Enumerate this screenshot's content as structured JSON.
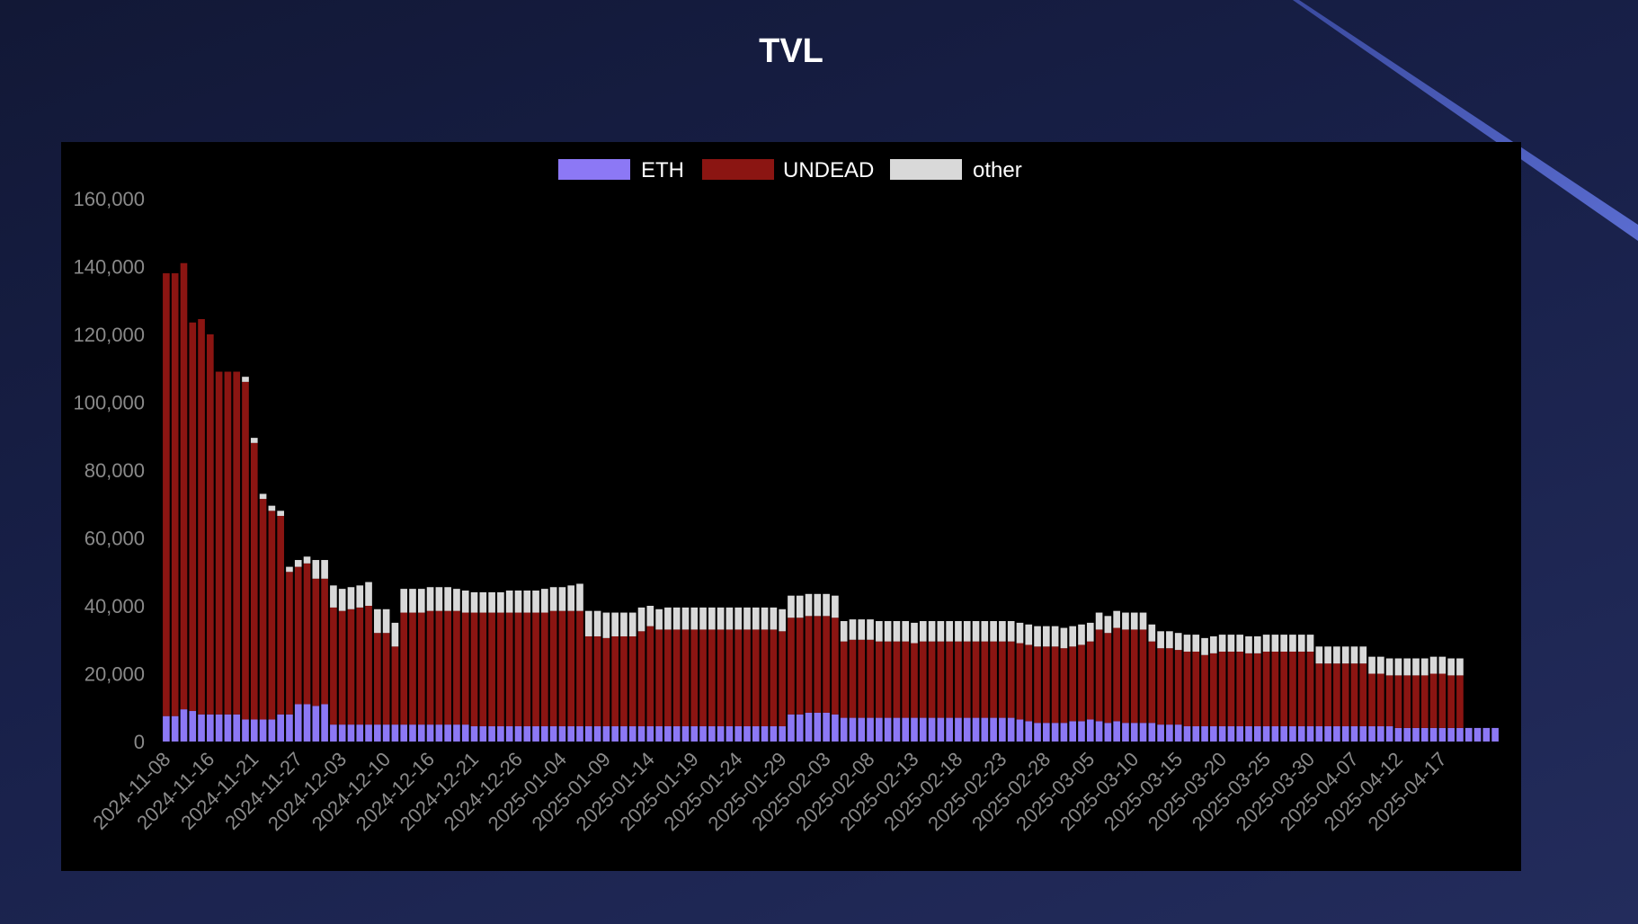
{
  "chart_data": {
    "type": "bar",
    "stacked": true,
    "title": "TVL",
    "xlabel": "",
    "ylabel": "",
    "ylim": [
      0,
      160000
    ],
    "yticks": [
      0,
      20000,
      40000,
      60000,
      80000,
      100000,
      120000,
      140000,
      160000
    ],
    "ytick_labels": [
      "0",
      "20,000",
      "40,000",
      "60,000",
      "80,000",
      "100,000",
      "120,000",
      "140,000",
      "160,000"
    ],
    "xtick_labels": [
      "2024-11-08",
      "2024-11-16",
      "2024-11-21",
      "2024-11-27",
      "2024-12-03",
      "2024-12-10",
      "2024-12-16",
      "2024-12-21",
      "2024-12-26",
      "2025-01-04",
      "2025-01-09",
      "2025-01-14",
      "2025-01-19",
      "2025-01-24",
      "2025-01-29",
      "2025-02-03",
      "2025-02-08",
      "2025-02-13",
      "2025-02-18",
      "2025-02-23",
      "2025-02-28",
      "2025-03-05",
      "2025-03-10",
      "2025-03-15",
      "2025-03-20",
      "2025-03-25",
      "2025-03-30",
      "2025-04-07",
      "2025-04-12",
      "2025-04-17"
    ],
    "xtick_every": 5,
    "grid": false,
    "legend_position": "top-center",
    "series": [
      {
        "name": "ETH",
        "color": "#8c78f5",
        "values": [
          7500,
          7500,
          9500,
          9000,
          8000,
          8000,
          8000,
          8000,
          8000,
          6500,
          6500,
          6500,
          6500,
          8000,
          8000,
          11000,
          11000,
          10500,
          11000,
          5000,
          5000,
          5000,
          5000,
          5000,
          5000,
          5000,
          5000,
          5000,
          5000,
          5000,
          5000,
          5000,
          5000,
          5000,
          5000,
          4500,
          4500,
          4500,
          4500,
          4500,
          4500,
          4500,
          4500,
          4500,
          4500,
          4500,
          4500,
          4500,
          4500,
          4500,
          4500,
          4500,
          4500,
          4500,
          4500,
          4500,
          4500,
          4500,
          4500,
          4500,
          4500,
          4500,
          4500,
          4500,
          4500,
          4500,
          4500,
          4500,
          4500,
          4500,
          4500,
          8000,
          8000,
          8500,
          8500,
          8500,
          8000,
          7000,
          7000,
          7000,
          7000,
          7000,
          7000,
          7000,
          7000,
          7000,
          7000,
          7000,
          7000,
          7000,
          7000,
          7000,
          7000,
          7000,
          7000,
          7000,
          7000,
          6500,
          6000,
          5500,
          5500,
          5500,
          5500,
          6000,
          6000,
          6500,
          6000,
          5500,
          6000,
          5500,
          5500,
          5500,
          5500,
          5000,
          5000,
          5000,
          4500,
          4500,
          4500,
          4500,
          4500,
          4500,
          4500,
          4500,
          4500,
          4500,
          4500,
          4500,
          4500,
          4500,
          4500,
          4500,
          4500,
          4500,
          4500,
          4500,
          4500,
          4500,
          4500,
          4500,
          4000,
          4000,
          4000,
          4000,
          4000,
          4000,
          4000,
          4000,
          4000,
          4000,
          4000,
          4000
        ],
        "labels_present": true
      },
      {
        "name": "UNDEAD",
        "color": "#8b1512",
        "values": [
          130500,
          130500,
          131500,
          114500,
          116500,
          112000,
          101000,
          101000,
          101000,
          99500,
          81500,
          65000,
          61500,
          58500,
          42000,
          40500,
          41500,
          37500,
          37000,
          34500,
          33500,
          34000,
          34500,
          35000,
          27000,
          27000,
          23000,
          33000,
          33000,
          33000,
          33500,
          33500,
          33500,
          33500,
          33000,
          33500,
          33500,
          33500,
          33500,
          33500,
          33500,
          33500,
          33500,
          33500,
          34000,
          34000,
          34000,
          34000,
          26500,
          26500,
          26000,
          26500,
          26500,
          26500,
          28000,
          29500,
          28500,
          28500,
          28500,
          28500,
          28500,
          28500,
          28500,
          28500,
          28500,
          28500,
          28500,
          28500,
          28500,
          28500,
          28000,
          28500,
          28500,
          28500,
          28500,
          28500,
          28500,
          22500,
          23000,
          23000,
          23000,
          22500,
          22500,
          22500,
          22500,
          22000,
          22500,
          22500,
          22500,
          22500,
          22500,
          22500,
          22500,
          22500,
          22500,
          22500,
          22500,
          22500,
          22500,
          22500,
          22500,
          22500,
          22000,
          22000,
          22500,
          23000,
          27000,
          26500,
          27500,
          27500,
          27500,
          27500,
          24000,
          22500,
          22500,
          22000,
          22000,
          22000,
          21000,
          21500,
          22000,
          22000,
          22000,
          21500,
          21500,
          22000,
          22000,
          22000,
          22000,
          22000,
          22000,
          18500,
          18500,
          18500,
          18500,
          18500,
          18500,
          15500,
          15500,
          15000,
          15500,
          15500,
          15500,
          15500,
          16000,
          16000,
          15500,
          15500
        ],
        "labels_present": true
      },
      {
        "name": "other",
        "color": "#d9d9d9",
        "values": [
          0,
          0,
          0,
          0,
          0,
          0,
          0,
          0,
          0,
          1500,
          1500,
          1500,
          1500,
          1500,
          1500,
          2000,
          2000,
          5500,
          5500,
          6500,
          6500,
          6500,
          6500,
          7000,
          7000,
          7000,
          7000,
          7000,
          7000,
          7000,
          7000,
          7000,
          7000,
          6500,
          6500,
          6000,
          6000,
          6000,
          6000,
          6500,
          6500,
          6500,
          6500,
          7000,
          7000,
          7000,
          7500,
          8000,
          7500,
          7500,
          7500,
          7000,
          7000,
          7000,
          7000,
          6000,
          6000,
          6500,
          6500,
          6500,
          6500,
          6500,
          6500,
          6500,
          6500,
          6500,
          6500,
          6500,
          6500,
          6500,
          6500,
          6500,
          6500,
          6500,
          6500,
          6500,
          6500,
          6000,
          6000,
          6000,
          6000,
          6000,
          6000,
          6000,
          6000,
          6000,
          6000,
          6000,
          6000,
          6000,
          6000,
          6000,
          6000,
          6000,
          6000,
          6000,
          6000,
          6000,
          6000,
          6000,
          6000,
          6000,
          6000,
          6000,
          6000,
          5500,
          5000,
          5000,
          5000,
          5000,
          5000,
          5000,
          5000,
          5000,
          5000,
          5000,
          5000,
          5000,
          5000,
          5000,
          5000,
          5000,
          5000,
          5000,
          5000,
          5000,
          5000,
          5000,
          5000,
          5000,
          5000,
          5000,
          5000,
          5000,
          5000,
          5000,
          5000,
          5000,
          5000,
          5000,
          5000,
          5000,
          5000,
          5000,
          5000,
          5000,
          5000,
          5000
        ],
        "labels_present": true
      }
    ]
  }
}
